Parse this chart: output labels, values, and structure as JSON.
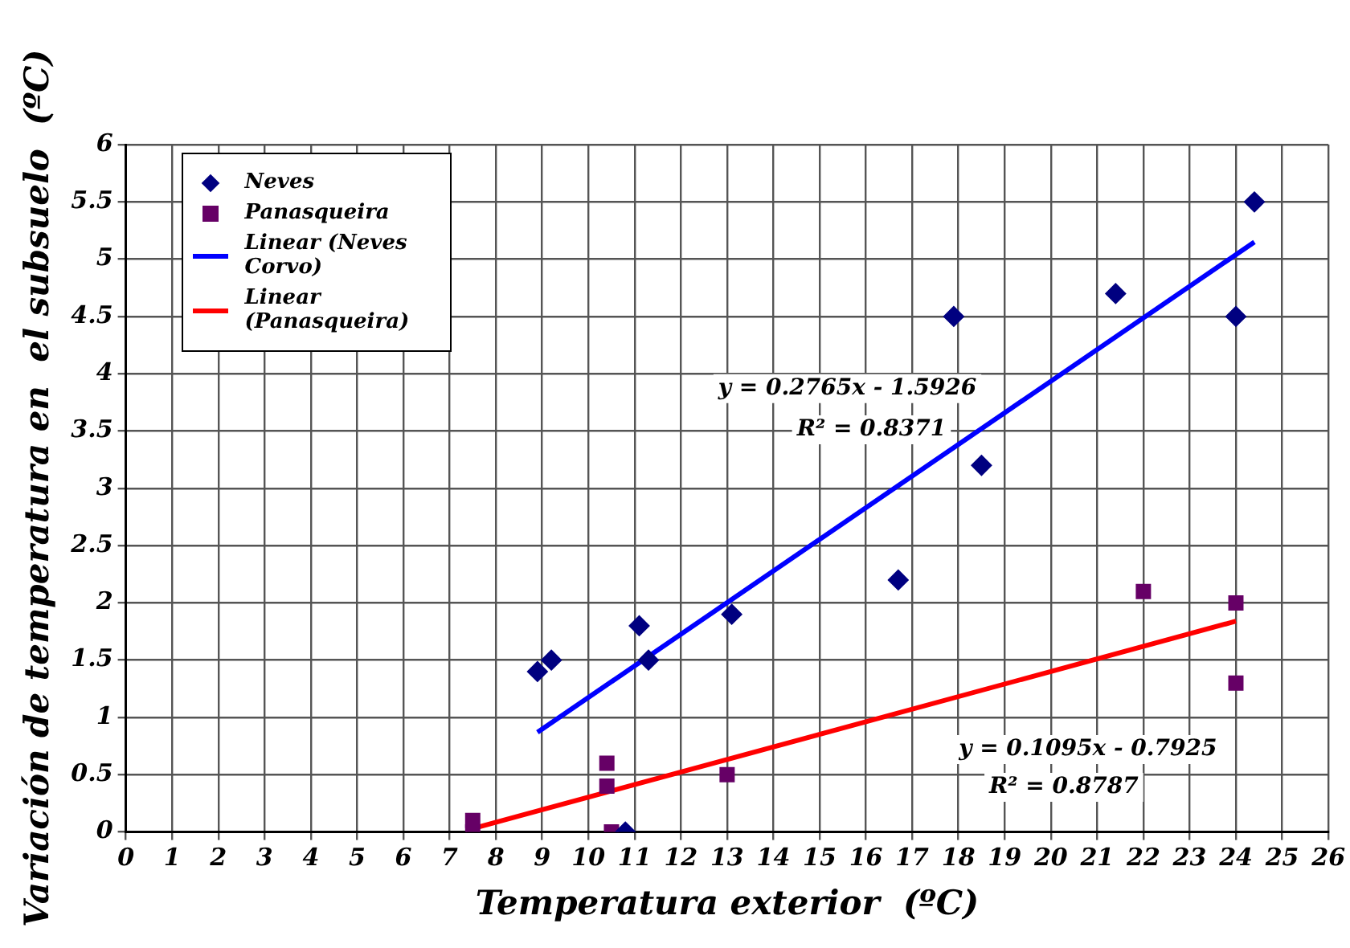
{
  "chart_data": {
    "type": "scatter",
    "xlabel": "Temperatura exterior  (ºC)",
    "ylabel": "Variación de temperatura en  el subsuelo  (ºC)",
    "xlim": [
      0,
      26
    ],
    "xticks": [
      0,
      1,
      2,
      3,
      4,
      5,
      6,
      7,
      8,
      9,
      10,
      11,
      12,
      13,
      14,
      15,
      16,
      17,
      18,
      19,
      20,
      21,
      22,
      23,
      24,
      25,
      26
    ],
    "ylim": [
      0,
      6
    ],
    "yticks": [
      0,
      0.5,
      1,
      1.5,
      2,
      2.5,
      3,
      3.5,
      4,
      4.5,
      5,
      5.5,
      6
    ],
    "grid": true,
    "legend": "top left",
    "series": [
      {
        "name": "Neves",
        "marker": "diamond",
        "color": "#000080",
        "x": [
          8.9,
          9.2,
          11.1,
          11.3,
          13.1,
          16.7,
          17.9,
          18.5,
          21.4,
          24,
          24.4,
          10.8
        ],
        "values": [
          1.4,
          1.5,
          1.8,
          1.5,
          1.9,
          2.2,
          4.5,
          3.2,
          4.7,
          4.5,
          5.5,
          0
        ]
      },
      {
        "name": "Panasqueira",
        "marker": "square",
        "color": "#660066",
        "x": [
          7.5,
          7.5,
          10.4,
          10.4,
          10.5,
          13,
          22,
          24,
          24
        ],
        "values": [
          0.1,
          0,
          0.6,
          0.4,
          0,
          0.5,
          2.1,
          2,
          1.3
        ]
      },
      {
        "name": "Linear (Neves Corvo)",
        "type": "line",
        "marker": "none",
        "color": "#0000ff",
        "x": [
          8.9,
          24.4
        ],
        "values": [
          0.87,
          5.15
        ]
      },
      {
        "name": "Linear (Panasqueira)",
        "type": "line",
        "marker": "none",
        "color": "#ff0000",
        "x": [
          7.5,
          24
        ],
        "values": [
          0.03,
          1.84
        ]
      }
    ],
    "annotations": [
      "y = 0.2765x - 1.5926",
      "R² = 0.8371",
      "y = 0.1095x - 0.7925",
      "R² = 0.8787"
    ]
  }
}
